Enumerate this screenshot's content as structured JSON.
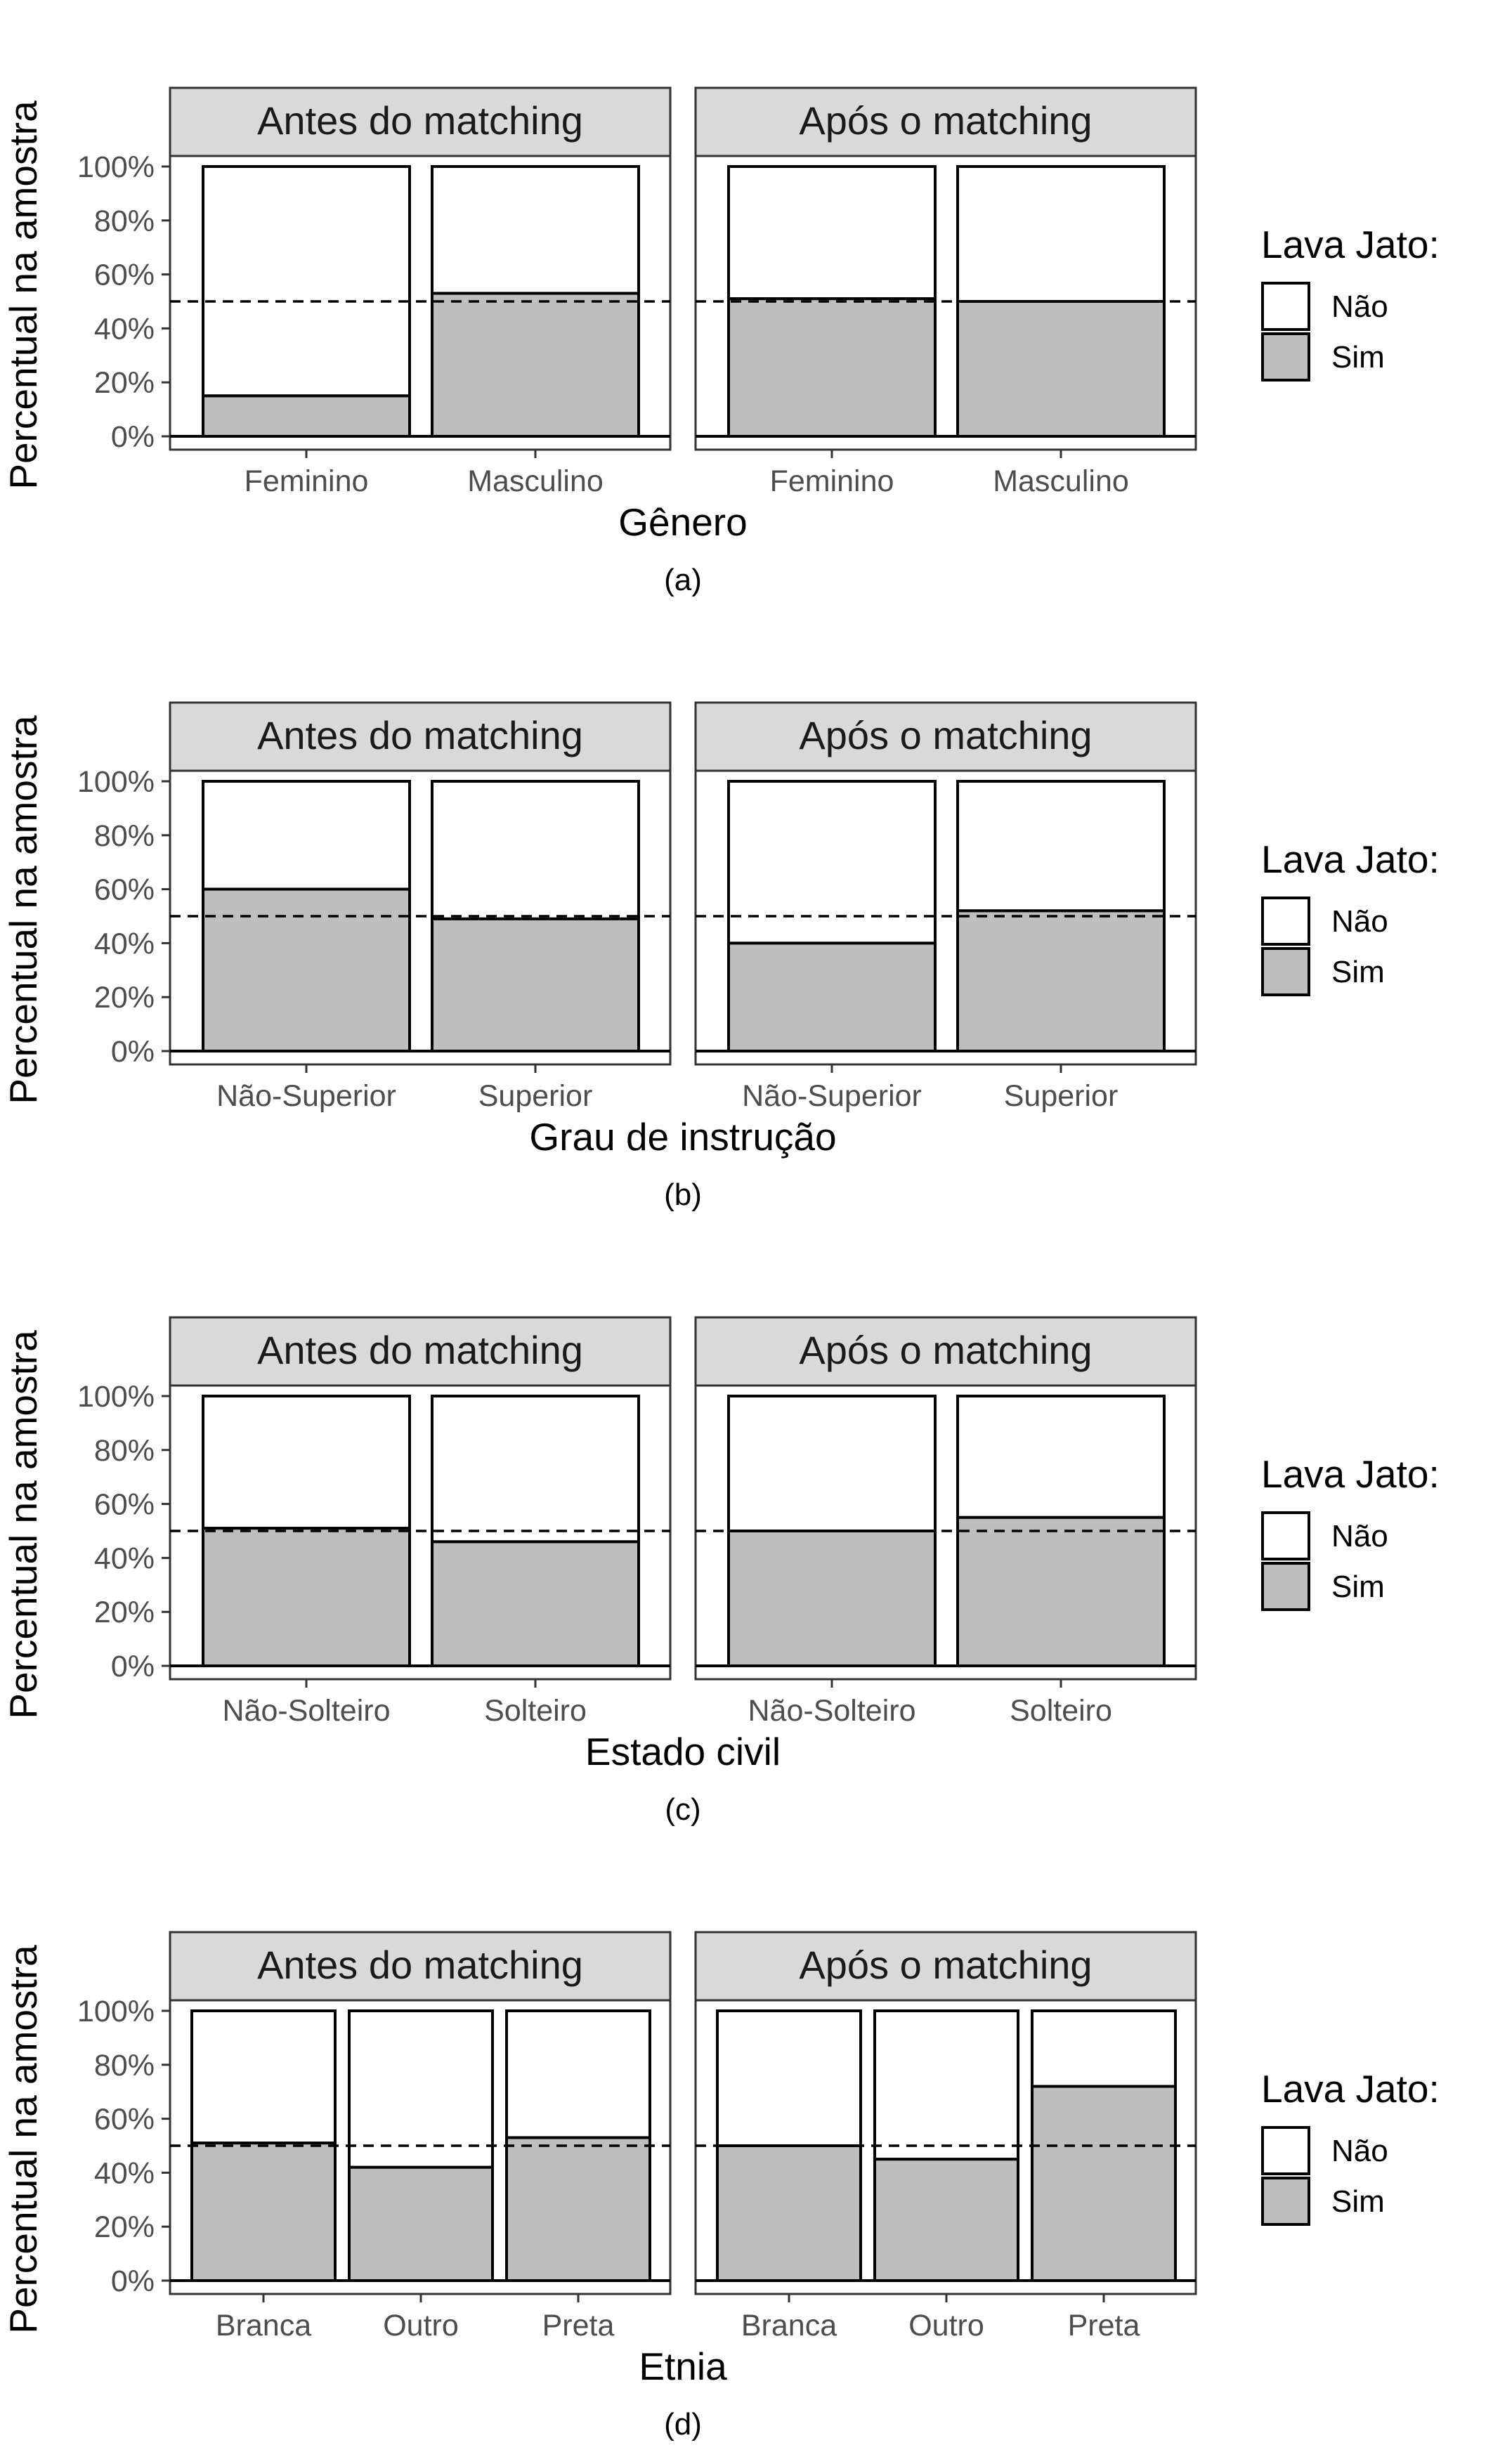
{
  "legend": {
    "title": "Lava Jato:",
    "entries": [
      {
        "label": "Não",
        "color": "#ffffff"
      },
      {
        "label": "Sim",
        "color": "#bebebe"
      }
    ]
  },
  "ylabel": "Percentual na amostra",
  "yticks": [
    "0%",
    "20%",
    "40%",
    "60%",
    "80%",
    "100%"
  ],
  "reference_line": 0.5,
  "chart_data": [
    {
      "type": "bar",
      "stacked": true,
      "caption": "(a)",
      "xlabel": "Gênero",
      "ylabel": "Percentual na amostra",
      "ylim": [
        0,
        1
      ],
      "panels": [
        {
          "title": "Antes do matching",
          "categories": [
            "Feminino",
            "Masculino"
          ],
          "sim": [
            0.15,
            0.53
          ]
        },
        {
          "title": "Após o matching",
          "categories": [
            "Feminino",
            "Masculino"
          ],
          "sim": [
            0.51,
            0.5
          ]
        }
      ]
    },
    {
      "type": "bar",
      "stacked": true,
      "caption": "(b)",
      "xlabel": "Grau de instrução",
      "ylabel": "Percentual na amostra",
      "ylim": [
        0,
        1
      ],
      "panels": [
        {
          "title": "Antes do matching",
          "categories": [
            "Não-Superior",
            "Superior"
          ],
          "sim": [
            0.6,
            0.49
          ]
        },
        {
          "title": "Após o matching",
          "categories": [
            "Não-Superior",
            "Superior"
          ],
          "sim": [
            0.4,
            0.52
          ]
        }
      ]
    },
    {
      "type": "bar",
      "stacked": true,
      "caption": "(c)",
      "xlabel": "Estado civil",
      "ylabel": "Percentual na amostra",
      "ylim": [
        0,
        1
      ],
      "panels": [
        {
          "title": "Antes do matching",
          "categories": [
            "Não-Solteiro",
            "Solteiro"
          ],
          "sim": [
            0.51,
            0.46
          ]
        },
        {
          "title": "Após o matching",
          "categories": [
            "Não-Solteiro",
            "Solteiro"
          ],
          "sim": [
            0.5,
            0.55
          ]
        }
      ]
    },
    {
      "type": "bar",
      "stacked": true,
      "caption": "(d)",
      "xlabel": "Etnia",
      "ylabel": "Percentual na amostra",
      "ylim": [
        0,
        1
      ],
      "panels": [
        {
          "title": "Antes do matching",
          "categories": [
            "Branca",
            "Outro",
            "Preta"
          ],
          "sim": [
            0.51,
            0.42,
            0.53
          ]
        },
        {
          "title": "Após o matching",
          "categories": [
            "Branca",
            "Outro",
            "Preta"
          ],
          "sim": [
            0.5,
            0.45,
            0.72
          ]
        }
      ]
    }
  ]
}
